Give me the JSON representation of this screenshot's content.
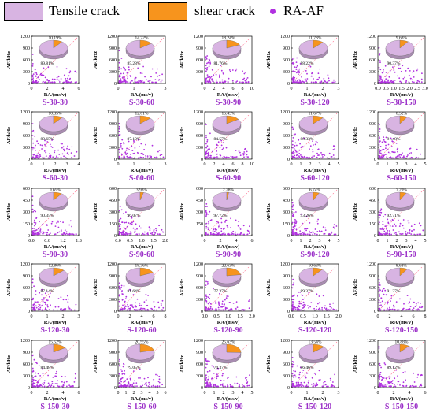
{
  "legend": {
    "tensile_label": "Tensile crack",
    "shear_label": "shear crack",
    "raaf_label": "RA-AF",
    "tensile_color": "#d8b4e2",
    "shear_color": "#f7941d",
    "point_color": "#b030e0"
  },
  "axes_common": {
    "ylabel": "AF/kHz",
    "xlabel": "RA/(ms/v)"
  },
  "chart_data": [
    {
      "type": "scatter+pie",
      "title": "S-30-30",
      "xlim": [
        0,
        6
      ],
      "xticks": [
        "0",
        "2",
        "4",
        "6"
      ],
      "ylim": [
        0,
        1200
      ],
      "yticks": [
        "0",
        "300",
        "600",
        "900",
        "1200"
      ],
      "tensile_pct": 89.81,
      "shear_pct": 10.19,
      "tensile_label": "89.81%",
      "shear_label": "10.19%"
    },
    {
      "type": "scatter+pie",
      "title": "S-30-60",
      "xlim": [
        0,
        3
      ],
      "xticks": [
        "0",
        "1",
        "2",
        "3"
      ],
      "ylim": [
        0,
        1200
      ],
      "yticks": [
        "0",
        "300",
        "600",
        "900",
        "1200"
      ],
      "tensile_pct": 85.28,
      "shear_pct": 14.72,
      "tensile_label": "85.28%",
      "shear_label": "14.72%"
    },
    {
      "type": "scatter+pie",
      "title": "S-30-90",
      "xlim": [
        0,
        10
      ],
      "xticks": [
        "0",
        "2",
        "4",
        "6",
        "8",
        "10"
      ],
      "ylim": [
        0,
        1200
      ],
      "yticks": [
        "0",
        "300",
        "600",
        "900",
        "1200"
      ],
      "tensile_pct": 81.76,
      "shear_pct": 18.24,
      "tensile_label": "81.76%",
      "shear_label": "18.24%"
    },
    {
      "type": "scatter+pie",
      "title": "S-30-120",
      "xlim": [
        0,
        3
      ],
      "xticks": [
        "0",
        "1",
        "2",
        "3"
      ],
      "ylim": [
        0,
        1200
      ],
      "yticks": [
        "0",
        "300",
        "600",
        "900",
        "1200"
      ],
      "tensile_pct": 88.22,
      "shear_pct": 11.78,
      "tensile_label": "88.22%",
      "shear_label": "11.78%"
    },
    {
      "type": "scatter+pie",
      "title": "S-30-150",
      "xlim": [
        0,
        3.0
      ],
      "xticks": [
        "0.0",
        "0.5",
        "1.0",
        "1.5",
        "2.0",
        "2.5",
        "3.0"
      ],
      "ylim": [
        0,
        1200
      ],
      "yticks": [
        "0",
        "300",
        "600",
        "900",
        "1200"
      ],
      "tensile_pct": 90.37,
      "shear_pct": 9.63,
      "tensile_label": "90.37%",
      "shear_label": "9.63%"
    },
    {
      "type": "scatter+pie",
      "title": "S-60-30",
      "xlim": [
        0,
        4
      ],
      "xticks": [
        "0",
        "1",
        "2",
        "3",
        "4"
      ],
      "ylim": [
        0,
        1200
      ],
      "yticks": [
        "0",
        "300",
        "600",
        "900",
        "1200"
      ],
      "tensile_pct": 89.65,
      "shear_pct": 10.35,
      "tensile_label": "89.65%",
      "shear_label": "10.35%"
    },
    {
      "type": "scatter+pie",
      "title": "S-60-60",
      "xlim": [
        0,
        3
      ],
      "xticks": [
        "0",
        "1",
        "2",
        "3"
      ],
      "ylim": [
        0,
        1200
      ],
      "yticks": [
        "0",
        "300",
        "600",
        "900",
        "1200"
      ],
      "tensile_pct": 87.19,
      "shear_pct": 12.81,
      "tensile_label": "87.19%",
      "shear_label": "12.81%"
    },
    {
      "type": "scatter+pie",
      "title": "S-60-90",
      "xlim": [
        0,
        10
      ],
      "xticks": [
        "0",
        "2",
        "4",
        "6",
        "8",
        "10"
      ],
      "ylim": [
        0,
        1200
      ],
      "yticks": [
        "0",
        "300",
        "600",
        "900",
        "1200"
      ],
      "tensile_pct": 84.57,
      "shear_pct": 15.43,
      "tensile_label": "84.57%",
      "shear_label": "15.43%"
    },
    {
      "type": "scatter+pie",
      "title": "S-60-120",
      "xlim": [
        0,
        5
      ],
      "xticks": [
        "0",
        "1",
        "2",
        "3",
        "4",
        "5"
      ],
      "ylim": [
        0,
        1200
      ],
      "yticks": [
        "0",
        "300",
        "600",
        "900",
        "1200"
      ],
      "tensile_pct": 88.33,
      "shear_pct": 11.67,
      "tensile_label": "88.33%",
      "shear_label": "11.67%"
    },
    {
      "type": "scatter+pie",
      "title": "S-60-150",
      "xlim": [
        0,
        5
      ],
      "xticks": [
        "0",
        "1",
        "2",
        "3",
        "4",
        "5"
      ],
      "ylim": [
        0,
        1200
      ],
      "yticks": [
        "0",
        "300",
        "600",
        "900",
        "1200"
      ],
      "tensile_pct": 91.48,
      "shear_pct": 8.52,
      "tensile_label": "91.48%",
      "shear_label": "8.52%"
    },
    {
      "type": "scatter+pie",
      "title": "S-90-30",
      "xlim": [
        0,
        1.8
      ],
      "xticks": [
        "0.0",
        "0.6",
        "1.2",
        "1.8"
      ],
      "ylim": [
        0,
        600
      ],
      "yticks": [
        "0",
        "150",
        "300",
        "450",
        "600"
      ],
      "tensile_pct": 90.35,
      "shear_pct": 9.65,
      "tensile_label": "90.35%",
      "shear_label": "9.65%"
    },
    {
      "type": "scatter+pie",
      "title": "S-90-60",
      "xlim": [
        0,
        2.0
      ],
      "xticks": [
        "0.0",
        "0.5",
        "1.0",
        "1.5",
        "2.0"
      ],
      "ylim": [
        0,
        600
      ],
      "yticks": [
        "0",
        "150",
        "300",
        "450",
        "600"
      ],
      "tensile_pct": 96.07,
      "shear_pct": 3.93,
      "tensile_label": "96.07%",
      "shear_label": "3.93%"
    },
    {
      "type": "scatter+pie",
      "title": "S-90-90",
      "xlim": [
        0,
        6
      ],
      "xticks": [
        "0",
        "2",
        "4",
        "6"
      ],
      "ylim": [
        0,
        600
      ],
      "yticks": [
        "0",
        "150",
        "300",
        "450",
        "600"
      ],
      "tensile_pct": 97.72,
      "shear_pct": 2.28,
      "tensile_label": "97.72%",
      "shear_label": "2.28%"
    },
    {
      "type": "scatter+pie",
      "title": "S-90-120",
      "xlim": [
        0,
        5
      ],
      "xticks": [
        "0",
        "1",
        "2",
        "3",
        "4",
        "5"
      ],
      "ylim": [
        0,
        600
      ],
      "yticks": [
        "0",
        "150",
        "300",
        "450",
        "600"
      ],
      "tensile_pct": 93.26,
      "shear_pct": 6.74,
      "tensile_label": "93.26%",
      "shear_label": "6.74%"
    },
    {
      "type": "scatter+pie",
      "title": "S-90-150",
      "xlim": [
        0,
        5
      ],
      "xticks": [
        "0",
        "1",
        "2",
        "3",
        "4",
        "5"
      ],
      "ylim": [
        0,
        600
      ],
      "yticks": [
        "0",
        "150",
        "300",
        "450",
        "600"
      ],
      "tensile_pct": 92.71,
      "shear_pct": 7.29,
      "tensile_label": "92.71%",
      "shear_label": "7.29%"
    },
    {
      "type": "scatter+pie",
      "title": "S-120-30",
      "xlim": [
        0,
        3
      ],
      "xticks": [
        "0",
        "1",
        "2",
        "3"
      ],
      "ylim": [
        0,
        1200
      ],
      "yticks": [
        "0",
        "300",
        "600",
        "900",
        "1200"
      ],
      "tensile_pct": 87.14,
      "shear_pct": 12.86,
      "tensile_label": "87.14%",
      "shear_label": "12.86%"
    },
    {
      "type": "scatter+pie",
      "title": "S-120-60",
      "xlim": [
        0,
        8
      ],
      "xticks": [
        "0",
        "2",
        "4",
        "6",
        "8"
      ],
      "ylim": [
        0,
        1200
      ],
      "yticks": [
        "0",
        "300",
        "600",
        "900",
        "1200"
      ],
      "tensile_pct": 81.64,
      "shear_pct": 18.36,
      "tensile_label": "81.64%",
      "shear_label": "18.36%"
    },
    {
      "type": "scatter+pie",
      "title": "S-120-90",
      "xlim": [
        0,
        2.0
      ],
      "xticks": [
        "0.0",
        "0.5",
        "1.0",
        "1.5",
        "2.0"
      ],
      "ylim": [
        0,
        1200
      ],
      "yticks": [
        "0",
        "300",
        "600",
        "900",
        "1200"
      ],
      "tensile_pct": 77.37,
      "shear_pct": 22.63,
      "tensile_label": "77.37%",
      "shear_label": "22.63%"
    },
    {
      "type": "scatter+pie",
      "title": "S-120-120",
      "xlim": [
        0,
        2.0
      ],
      "xticks": [
        "0.0",
        "0.5",
        "1.0",
        "1.5",
        "2.0"
      ],
      "ylim": [
        0,
        1200
      ],
      "yticks": [
        "0",
        "300",
        "600",
        "900",
        "1200"
      ],
      "tensile_pct": 89.37,
      "shear_pct": 10.63,
      "tensile_label": "89.37%",
      "shear_label": "10.63%"
    },
    {
      "type": "scatter+pie",
      "title": "S-120-150",
      "xlim": [
        0,
        8
      ],
      "xticks": [
        "0",
        "2",
        "4",
        "6",
        "8"
      ],
      "ylim": [
        0,
        1200
      ],
      "yticks": [
        "0",
        "300",
        "600",
        "900",
        "1200"
      ],
      "tensile_pct": 91.37,
      "shear_pct": 8.63,
      "tensile_label": "91.37%",
      "shear_label": "8.63%"
    },
    {
      "type": "scatter+pie",
      "title": "S-150-30",
      "xlim": [
        0,
        6
      ],
      "xticks": [
        "0",
        "2",
        "4",
        "6"
      ],
      "ylim": [
        0,
        1200
      ],
      "yticks": [
        "0",
        "300",
        "600",
        "900",
        "1200"
      ],
      "tensile_pct": 84.48,
      "shear_pct": 15.52,
      "tensile_label": "84.48%",
      "shear_label": "15.52%"
    },
    {
      "type": "scatter+pie",
      "title": "S-150-60",
      "xlim": [
        0,
        6
      ],
      "xticks": [
        "0",
        "1",
        "2",
        "3",
        "4",
        "5",
        "6"
      ],
      "ylim": [
        0,
        1200
      ],
      "yticks": [
        "0",
        "300",
        "600",
        "900",
        "1200"
      ],
      "tensile_pct": 79.05,
      "shear_pct": 20.95,
      "tensile_label": "79.05%",
      "shear_label": "20.95%"
    },
    {
      "type": "scatter+pie",
      "title": "S-150-90",
      "xlim": [
        0,
        5
      ],
      "xticks": [
        "0",
        "1",
        "2",
        "3",
        "4",
        "5"
      ],
      "ylim": [
        0,
        1200
      ],
      "yticks": [
        "0",
        "300",
        "600",
        "900",
        "1200"
      ],
      "tensile_pct": 74.37,
      "shear_pct": 25.63,
      "tensile_label": "74.37%",
      "shear_label": "25.63%"
    },
    {
      "type": "scatter+pie",
      "title": "S-150-120",
      "xlim": [
        0,
        3
      ],
      "xticks": [
        "0",
        "1",
        "2",
        "3"
      ],
      "ylim": [
        0,
        1200
      ],
      "yticks": [
        "0",
        "300",
        "600",
        "900",
        "1200"
      ],
      "tensile_pct": 86.46,
      "shear_pct": 13.54,
      "tensile_label": "86.46%",
      "shear_label": "13.54%"
    },
    {
      "type": "scatter+pie",
      "title": "S-150-150",
      "xlim": [
        0,
        6
      ],
      "xticks": [
        "0",
        "2",
        "4",
        "6"
      ],
      "ylim": [
        0,
        1200
      ],
      "yticks": [
        "0",
        "300",
        "600",
        "900",
        "1200"
      ],
      "tensile_pct": 89.12,
      "shear_pct": 10.88,
      "tensile_label": "89.12%",
      "shear_label": "10.88%"
    }
  ]
}
